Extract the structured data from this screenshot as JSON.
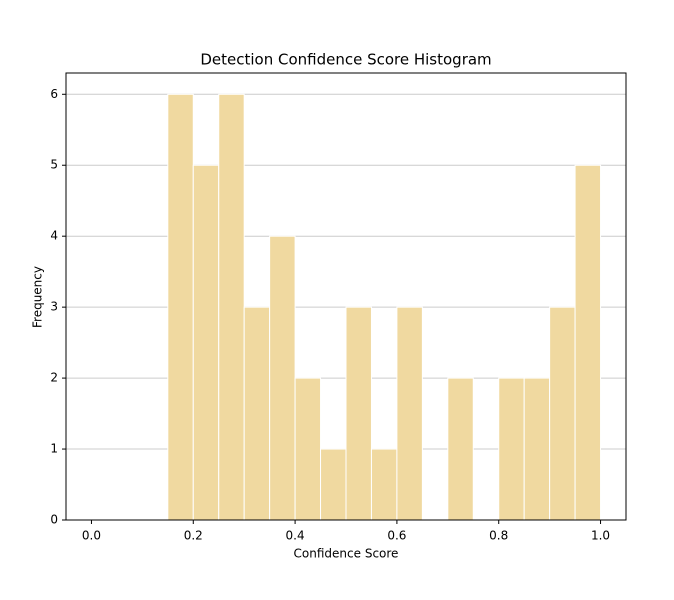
{
  "chart_data": {
    "type": "histogram",
    "title": "Detection Confidence Score Histogram",
    "xlabel": "Confidence Score",
    "ylabel": "Frequency",
    "bins": [
      0.15,
      0.2,
      0.25,
      0.3,
      0.35,
      0.4,
      0.45,
      0.5,
      0.55,
      0.6,
      0.65,
      0.7,
      0.75,
      0.8,
      0.85,
      0.9,
      0.95,
      1.0
    ],
    "counts": [
      6,
      5,
      6,
      3,
      4,
      2,
      1,
      3,
      1,
      3,
      0,
      2,
      0,
      2,
      2,
      3,
      5
    ],
    "color": "#f0d9a0",
    "edgecolor": "#ffffff",
    "xlim": [
      -0.05,
      1.05
    ],
    "ylim": [
      0,
      6.3
    ],
    "xticks": [
      {
        "value": 0,
        "label": "0.0"
      },
      0.2,
      0.4,
      0.6,
      0.8,
      {
        "value": 1,
        "label": "1.0"
      }
    ],
    "yticks": [
      0,
      1,
      2,
      3,
      4,
      5,
      6
    ],
    "grid": "y"
  }
}
